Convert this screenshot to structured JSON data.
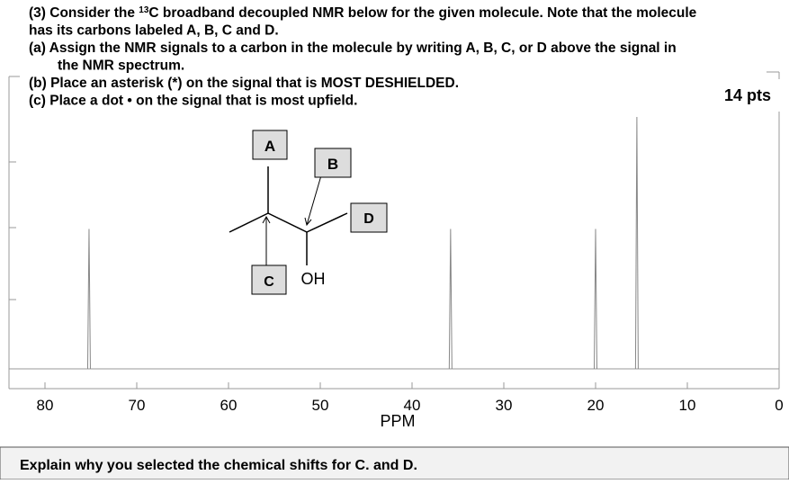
{
  "question": {
    "lines": [
      {
        "parts": [
          "(3) Consider the ",
          "13",
          "C broadband decoupled NMR below for the given molecule.  Note that the molecule"
        ]
      },
      {
        "parts": [
          "has its carbons labeled A, B, C and D."
        ]
      },
      {
        "parts": [
          "(a)  Assign the NMR signals to a carbon in the molecule by writing A, B, C, or D above the signal in"
        ]
      },
      {
        "parts": [
          "the NMR spectrum."
        ]
      },
      {
        "parts": [
          "(b)  Place an asterisk (*) on the signal that is MOST DESHIELDED."
        ]
      },
      {
        "parts": [
          "(c)  Place a dot • on the signal that is most upfield."
        ]
      }
    ],
    "points": "14 pts"
  },
  "molecule": {
    "labels": [
      "A",
      "B",
      "C",
      "D"
    ],
    "substituent": "OH"
  },
  "chart_data": {
    "type": "spectrum",
    "xlabel": "PPM",
    "x": [
      75.2,
      35.8,
      20.0,
      15.5
    ],
    "values": [
      1,
      1,
      1,
      1.8
    ],
    "color": "#888888",
    "xlim": [
      80,
      0
    ],
    "ylim": [
      0,
      2
    ],
    "xticks": [
      80,
      70,
      60,
      50,
      40,
      30,
      20,
      10,
      0
    ]
  },
  "footer": {
    "prompt": "Explain why you selected the chemical shifts for C. and D."
  }
}
